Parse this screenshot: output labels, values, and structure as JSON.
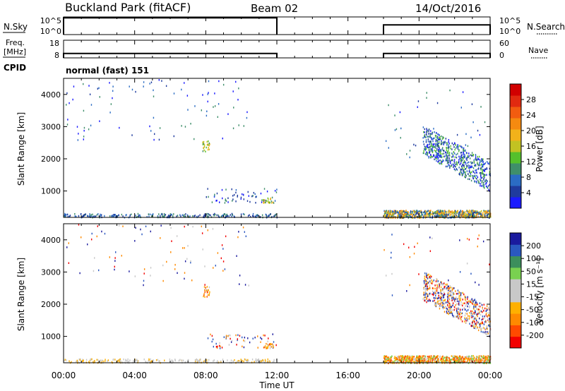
{
  "header": {
    "station": "Buckland Park (fitACF)",
    "beam": "Beam 02",
    "date": "14/Oct/2016"
  },
  "left_labels": {
    "nsky": "N.Sky",
    "freq": "Freq.",
    "mhz": "[MHz]",
    "cpid": "CPID"
  },
  "right_labels": {
    "nsearch": "N.Search",
    "nave": "Nave"
  },
  "cpid_text": "normal (fast) 151",
  "time_axis": {
    "title": "Time UT",
    "ticks": [
      "00:00",
      "04:00",
      "08:00",
      "12:00",
      "16:00",
      "20:00",
      "00:00"
    ]
  },
  "colors": {
    "power": [
      "#1a1aff",
      "#1f3b9e",
      "#2b6cc4",
      "#3f8f6a",
      "#55c02c",
      "#c2c222",
      "#f2b21a",
      "#f58a10",
      "#f25c10",
      "#e12a10",
      "#d10000"
    ],
    "velocity": [
      "#f20000",
      "#ff4a00",
      "#ff8a00",
      "#ffb000",
      "#c8c8c8",
      "#c8c8c8",
      "#79d150",
      "#3c8f5c",
      "#2a58c0",
      "#1a1a9e"
    ]
  },
  "chart_data": [
    {
      "type": "line",
      "name": "noise-panel",
      "ylabel": "N.Sky",
      "yticks_left": [
        "10^5",
        "10^0"
      ],
      "yticks_right": [
        "10^5",
        "10^0"
      ],
      "x_hours": [
        0,
        12,
        18,
        24
      ],
      "segments": [
        {
          "start": 0,
          "end": 12,
          "level": 0.95
        },
        {
          "start": 18,
          "end": 24,
          "level": 0.55
        }
      ]
    },
    {
      "type": "line",
      "name": "freq-panel",
      "ylabel": "Freq. [MHz]",
      "yticks_left": [
        "18",
        "8"
      ],
      "yticks_right": [
        "60",
        "0"
      ],
      "segments": [
        {
          "start": 0,
          "end": 12,
          "level": 0.25
        },
        {
          "start": 18,
          "end": 24,
          "level": 0.25
        }
      ]
    },
    {
      "type": "heatmap",
      "name": "power",
      "ylabel": "Slant Range [km]",
      "yticks": [
        "1000",
        "2000",
        "3000",
        "4000"
      ],
      "ylim": [
        180,
        4500
      ],
      "xlim_hours": [
        0,
        24
      ],
      "colorbar_title": "Power [dB]",
      "colorbar_ticks": [
        "4",
        "8",
        "12",
        "16",
        "20",
        "24",
        "28"
      ]
    },
    {
      "type": "heatmap",
      "name": "velocity",
      "ylabel": "Slant Range [km]",
      "yticks": [
        "1000",
        "2000",
        "3000",
        "4000"
      ],
      "ylim": [
        180,
        4500
      ],
      "xlim_hours": [
        0,
        24
      ],
      "colorbar_title": "Velocity [m s⁻¹]",
      "colorbar_ticks": [
        "-200",
        "-100",
        "-50",
        "-15",
        "15",
        "50",
        "100",
        "200"
      ]
    }
  ]
}
